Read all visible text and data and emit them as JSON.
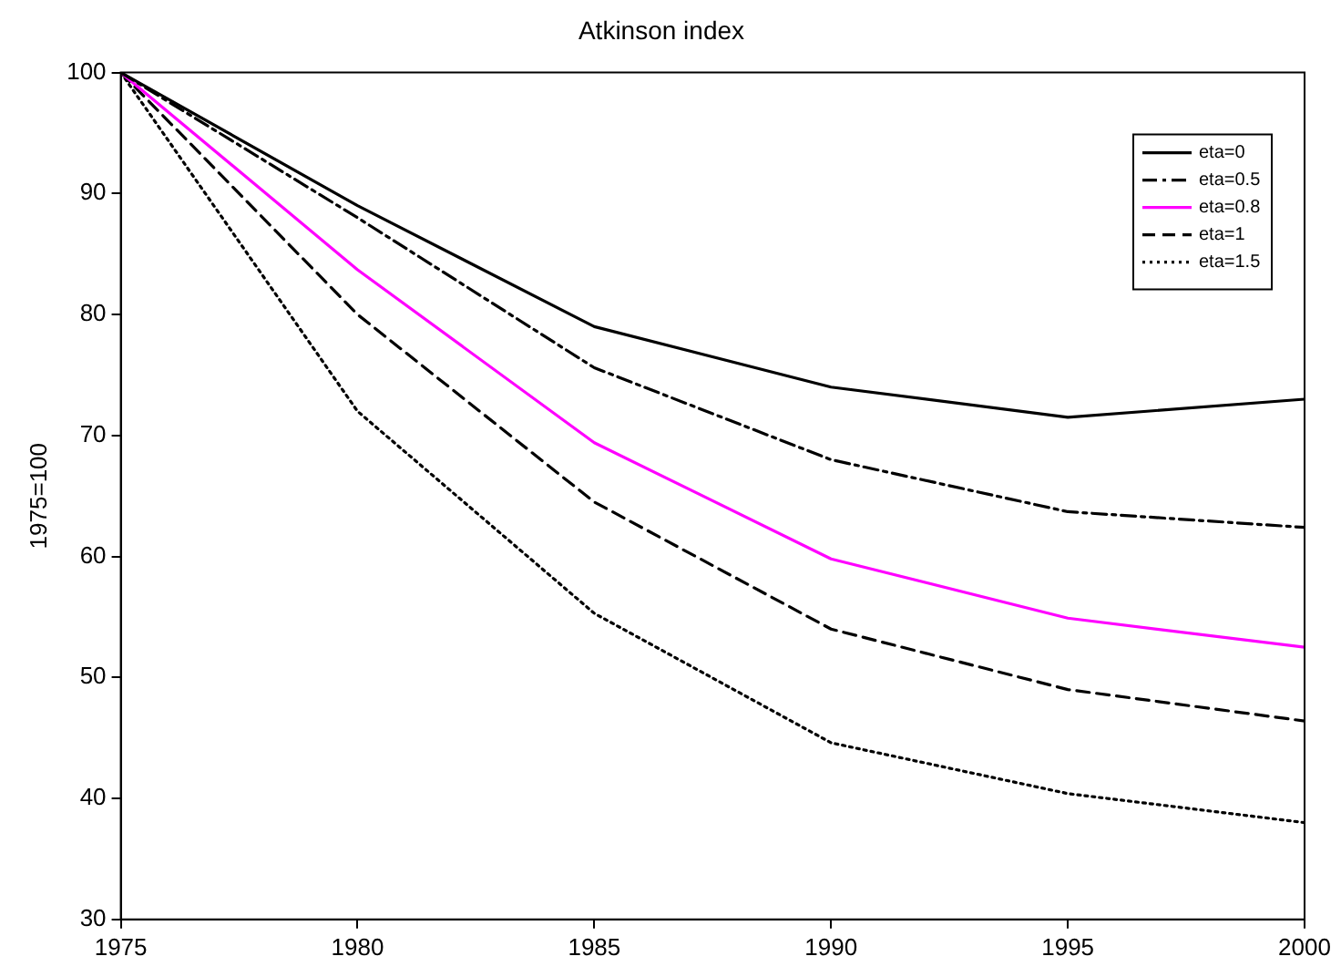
{
  "chart_data": {
    "type": "line",
    "title": "Atkinson index",
    "ylabel": "1975=100",
    "x": [
      1975,
      1980,
      1985,
      1990,
      1995,
      2000
    ],
    "xlim": [
      1975,
      2000
    ],
    "xticks": [
      1975,
      1980,
      1985,
      1990,
      1995,
      2000
    ],
    "ylim": [
      30,
      100
    ],
    "yticks": [
      30,
      40,
      50,
      60,
      70,
      80,
      90,
      100
    ],
    "grid": false,
    "legend": "top right",
    "marker": "none",
    "series": [
      {
        "name": "eta=0",
        "color": "#000000",
        "line_style": "solid",
        "values": [
          100,
          89,
          79,
          74,
          71.5,
          73
        ]
      },
      {
        "name": "eta=0.5",
        "color": "#000000",
        "line_style": "dashdot",
        "values": [
          100,
          88,
          75.6,
          68,
          63.7,
          62.4
        ]
      },
      {
        "name": "eta=0.8",
        "color": "#ff00ff",
        "line_style": "solid",
        "values": [
          100,
          83.7,
          69.4,
          59.8,
          54.9,
          52.5
        ]
      },
      {
        "name": "eta=1",
        "color": "#000000",
        "line_style": "dashed",
        "values": [
          100,
          80,
          64.5,
          54,
          49,
          46.4
        ]
      },
      {
        "name": "eta=1.5",
        "color": "#000000",
        "line_style": "dotted",
        "values": [
          100,
          72,
          55.3,
          44.6,
          40.4,
          38
        ]
      }
    ]
  }
}
